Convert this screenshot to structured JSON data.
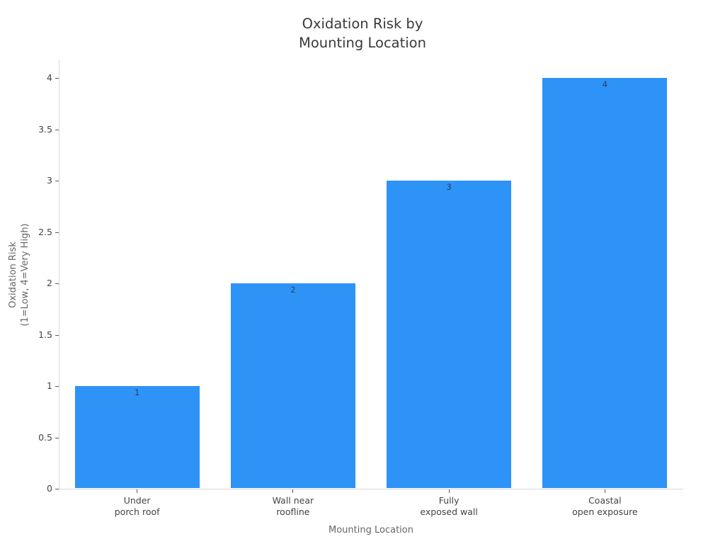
{
  "chart_data": {
    "type": "bar",
    "title": "Oxidation Risk by\nMounting Location",
    "title_lines": [
      "Oxidation Risk by",
      "Mounting Location"
    ],
    "xlabel": "Mounting Location",
    "ylabel": "Oxidation Risk\n(1=Low, 4=Very High)",
    "ylabel_lines": [
      "Oxidation Risk",
      "(1=Low, 4=Very High)"
    ],
    "categories": [
      "Under\nporch roof",
      "Wall near\nroofline",
      "Fully\nexposed wall",
      "Coastal\nopen exposure"
    ],
    "category_lines": [
      [
        "Under",
        "porch roof"
      ],
      [
        "Wall near",
        "roofline"
      ],
      [
        "Fully",
        "exposed wall"
      ],
      [
        "Coastal",
        "open exposure"
      ]
    ],
    "values": [
      1,
      2,
      3,
      4
    ],
    "bar_labels": [
      "1",
      "2",
      "3",
      "4"
    ],
    "ylim": [
      0,
      4.17
    ],
    "yticks": [
      0,
      0.5,
      1,
      1.5,
      2,
      2.5,
      3,
      3.5,
      4
    ],
    "ytick_labels": [
      "0",
      "0.5",
      "1",
      "1.5",
      "2",
      "2.5",
      "3",
      "3.5",
      "4"
    ],
    "grid": false,
    "legend": "none",
    "colors": {
      "bar": "#2E93F7",
      "axis_line": "#d9d9d9",
      "tick_mark": "#5a5a5a",
      "tick_label": "#444444",
      "axis_title": "#666666",
      "title": "#3a3a3a",
      "bar_label": "#2a3f5f",
      "background": "#ffffff"
    }
  }
}
